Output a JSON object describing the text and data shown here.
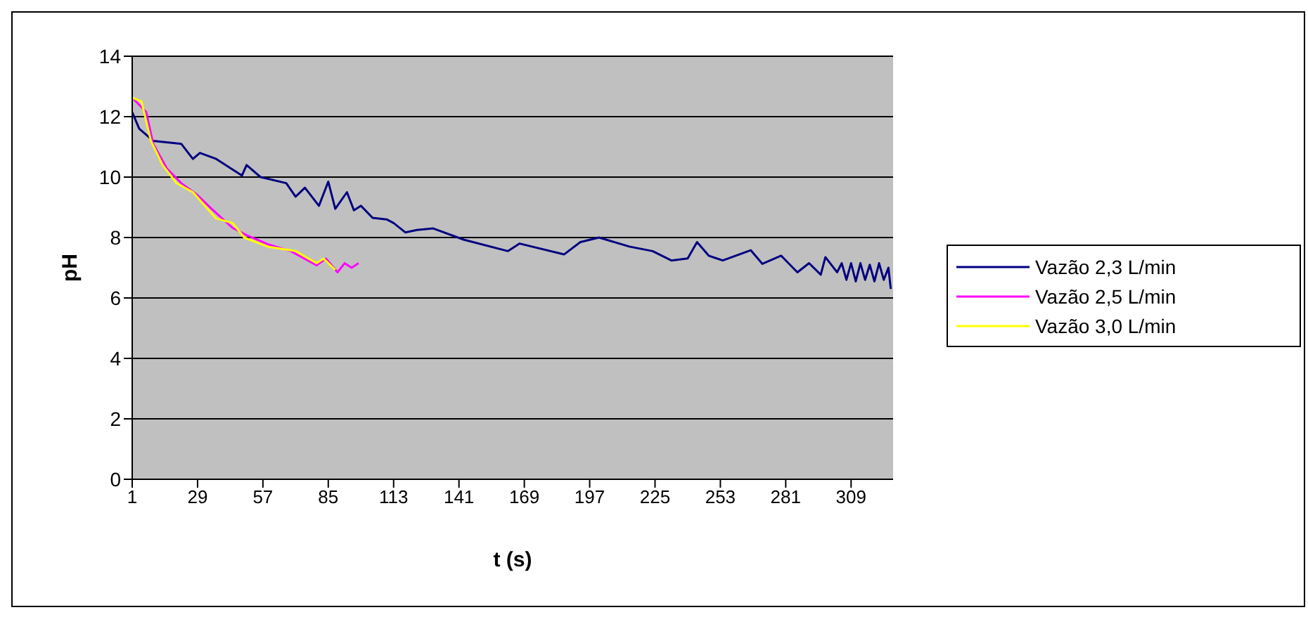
{
  "chart_data": {
    "type": "line",
    "xlabel": "t (s)",
    "ylabel": "pH",
    "xlim": [
      1,
      327
    ],
    "xticks": [
      1,
      29,
      57,
      85,
      113,
      141,
      169,
      197,
      225,
      253,
      281,
      309
    ],
    "ylim": [
      0,
      14
    ],
    "yticks": [
      0,
      2,
      4,
      6,
      8,
      10,
      12,
      14
    ],
    "grid": "y",
    "legend": "right",
    "marker": "none",
    "line_style": "solid",
    "series": [
      {
        "name": "Vazão 2,3 L/min",
        "color": "#000080",
        "x": [
          1,
          4,
          10,
          22,
          27,
          30,
          37,
          48,
          50,
          56,
          67,
          71,
          75,
          81,
          85,
          88,
          93,
          96,
          99,
          104,
          110,
          113,
          118,
          123,
          130,
          143,
          162,
          167,
          186,
          193,
          201,
          214,
          224,
          232,
          239,
          243,
          248,
          254,
          266,
          271,
          279,
          286,
          291,
          296,
          298,
          303,
          305,
          307,
          309,
          311,
          313,
          315,
          317,
          319,
          321,
          323,
          325,
          326
        ],
        "values": [
          12.15,
          11.6,
          11.2,
          11.1,
          10.6,
          10.8,
          10.6,
          10.05,
          10.4,
          10.0,
          9.8,
          9.35,
          9.65,
          9.05,
          9.85,
          8.95,
          9.5,
          8.9,
          9.05,
          8.65,
          8.6,
          8.48,
          8.17,
          8.25,
          8.3,
          7.93,
          7.55,
          7.8,
          7.44,
          7.85,
          8.0,
          7.7,
          7.55,
          7.24,
          7.31,
          7.85,
          7.4,
          7.24,
          7.58,
          7.13,
          7.4,
          6.85,
          7.15,
          6.77,
          7.35,
          6.85,
          7.15,
          6.6,
          7.15,
          6.55,
          7.15,
          6.6,
          7.1,
          6.55,
          7.15,
          6.6,
          7.0,
          6.3
        ]
      },
      {
        "name": "Vazão 2,5 L/min",
        "color": "#ff00ff",
        "x": [
          1,
          7,
          10,
          16,
          22,
          29,
          35,
          44,
          50,
          59,
          69,
          80,
          84,
          89,
          92,
          95,
          98
        ],
        "values": [
          12.63,
          12.15,
          11.1,
          10.27,
          9.8,
          9.4,
          8.95,
          8.32,
          8.08,
          7.78,
          7.55,
          7.08,
          7.3,
          6.85,
          7.15,
          7.0,
          7.15
        ]
      },
      {
        "name": "Vazão 3,0 L/min",
        "color": "#ffff00",
        "x": [
          1,
          5,
          9,
          14,
          20,
          27,
          37,
          44,
          49,
          59,
          71,
          80,
          83,
          88
        ],
        "values": [
          12.63,
          12.5,
          11.2,
          10.4,
          9.8,
          9.5,
          8.63,
          8.48,
          8.0,
          7.7,
          7.55,
          7.15,
          7.3,
          6.93
        ]
      }
    ]
  }
}
